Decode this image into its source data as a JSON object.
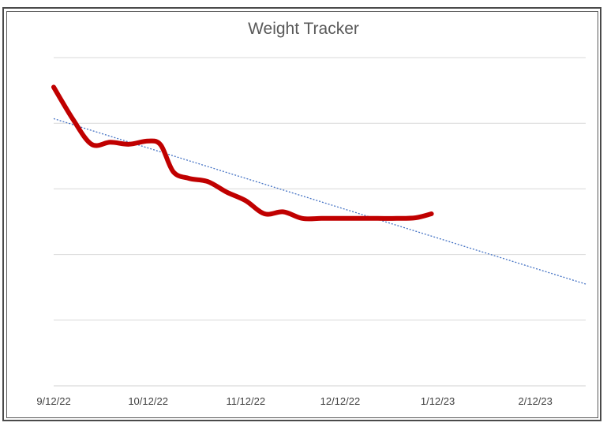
{
  "chart_data": {
    "type": "line",
    "title": "Weight Tracker",
    "xlabel": "",
    "ylabel": "",
    "x_tick_labels": [
      "9/12/22",
      "10/12/22",
      "11/12/22",
      "12/12/22",
      "1/12/23",
      "2/12/23"
    ],
    "x_ticks": [
      "2022-09-12",
      "2022-10-12",
      "2022-11-12",
      "2022-12-12",
      "2023-01-12",
      "2023-02-12"
    ],
    "xlim": [
      "2022-09-12",
      "2023-02-28"
    ],
    "ylim": [
      0,
      5
    ],
    "y_tick_labels_shown": false,
    "grid": "horizontal",
    "series": [
      {
        "color": "#C00000",
        "smooth": true,
        "x": [
          "2022-09-12",
          "2022-09-18",
          "2022-09-24",
          "2022-09-30",
          "2022-10-06",
          "2022-10-12",
          "2022-10-16",
          "2022-10-20",
          "2022-10-25",
          "2022-10-31",
          "2022-11-06",
          "2022-11-12",
          "2022-11-18",
          "2022-11-24",
          "2022-11-30",
          "2022-12-06",
          "2022-12-12",
          "2022-12-18",
          "2022-12-24",
          "2022-12-30",
          "2023-01-05",
          "2023-01-10"
        ],
        "y": [
          4.55,
          4.07,
          3.68,
          3.71,
          3.68,
          3.73,
          3.67,
          3.26,
          3.16,
          3.11,
          2.95,
          2.82,
          2.62,
          2.65,
          2.55,
          2.55,
          2.55,
          2.55,
          2.55,
          2.55,
          2.56,
          2.62
        ]
      },
      {
        "color": "#4472C4",
        "type": "trendline-linear",
        "dashed": true,
        "x": [
          "2022-09-12",
          "2023-02-28"
        ],
        "y": [
          4.07,
          1.55
        ]
      }
    ]
  }
}
